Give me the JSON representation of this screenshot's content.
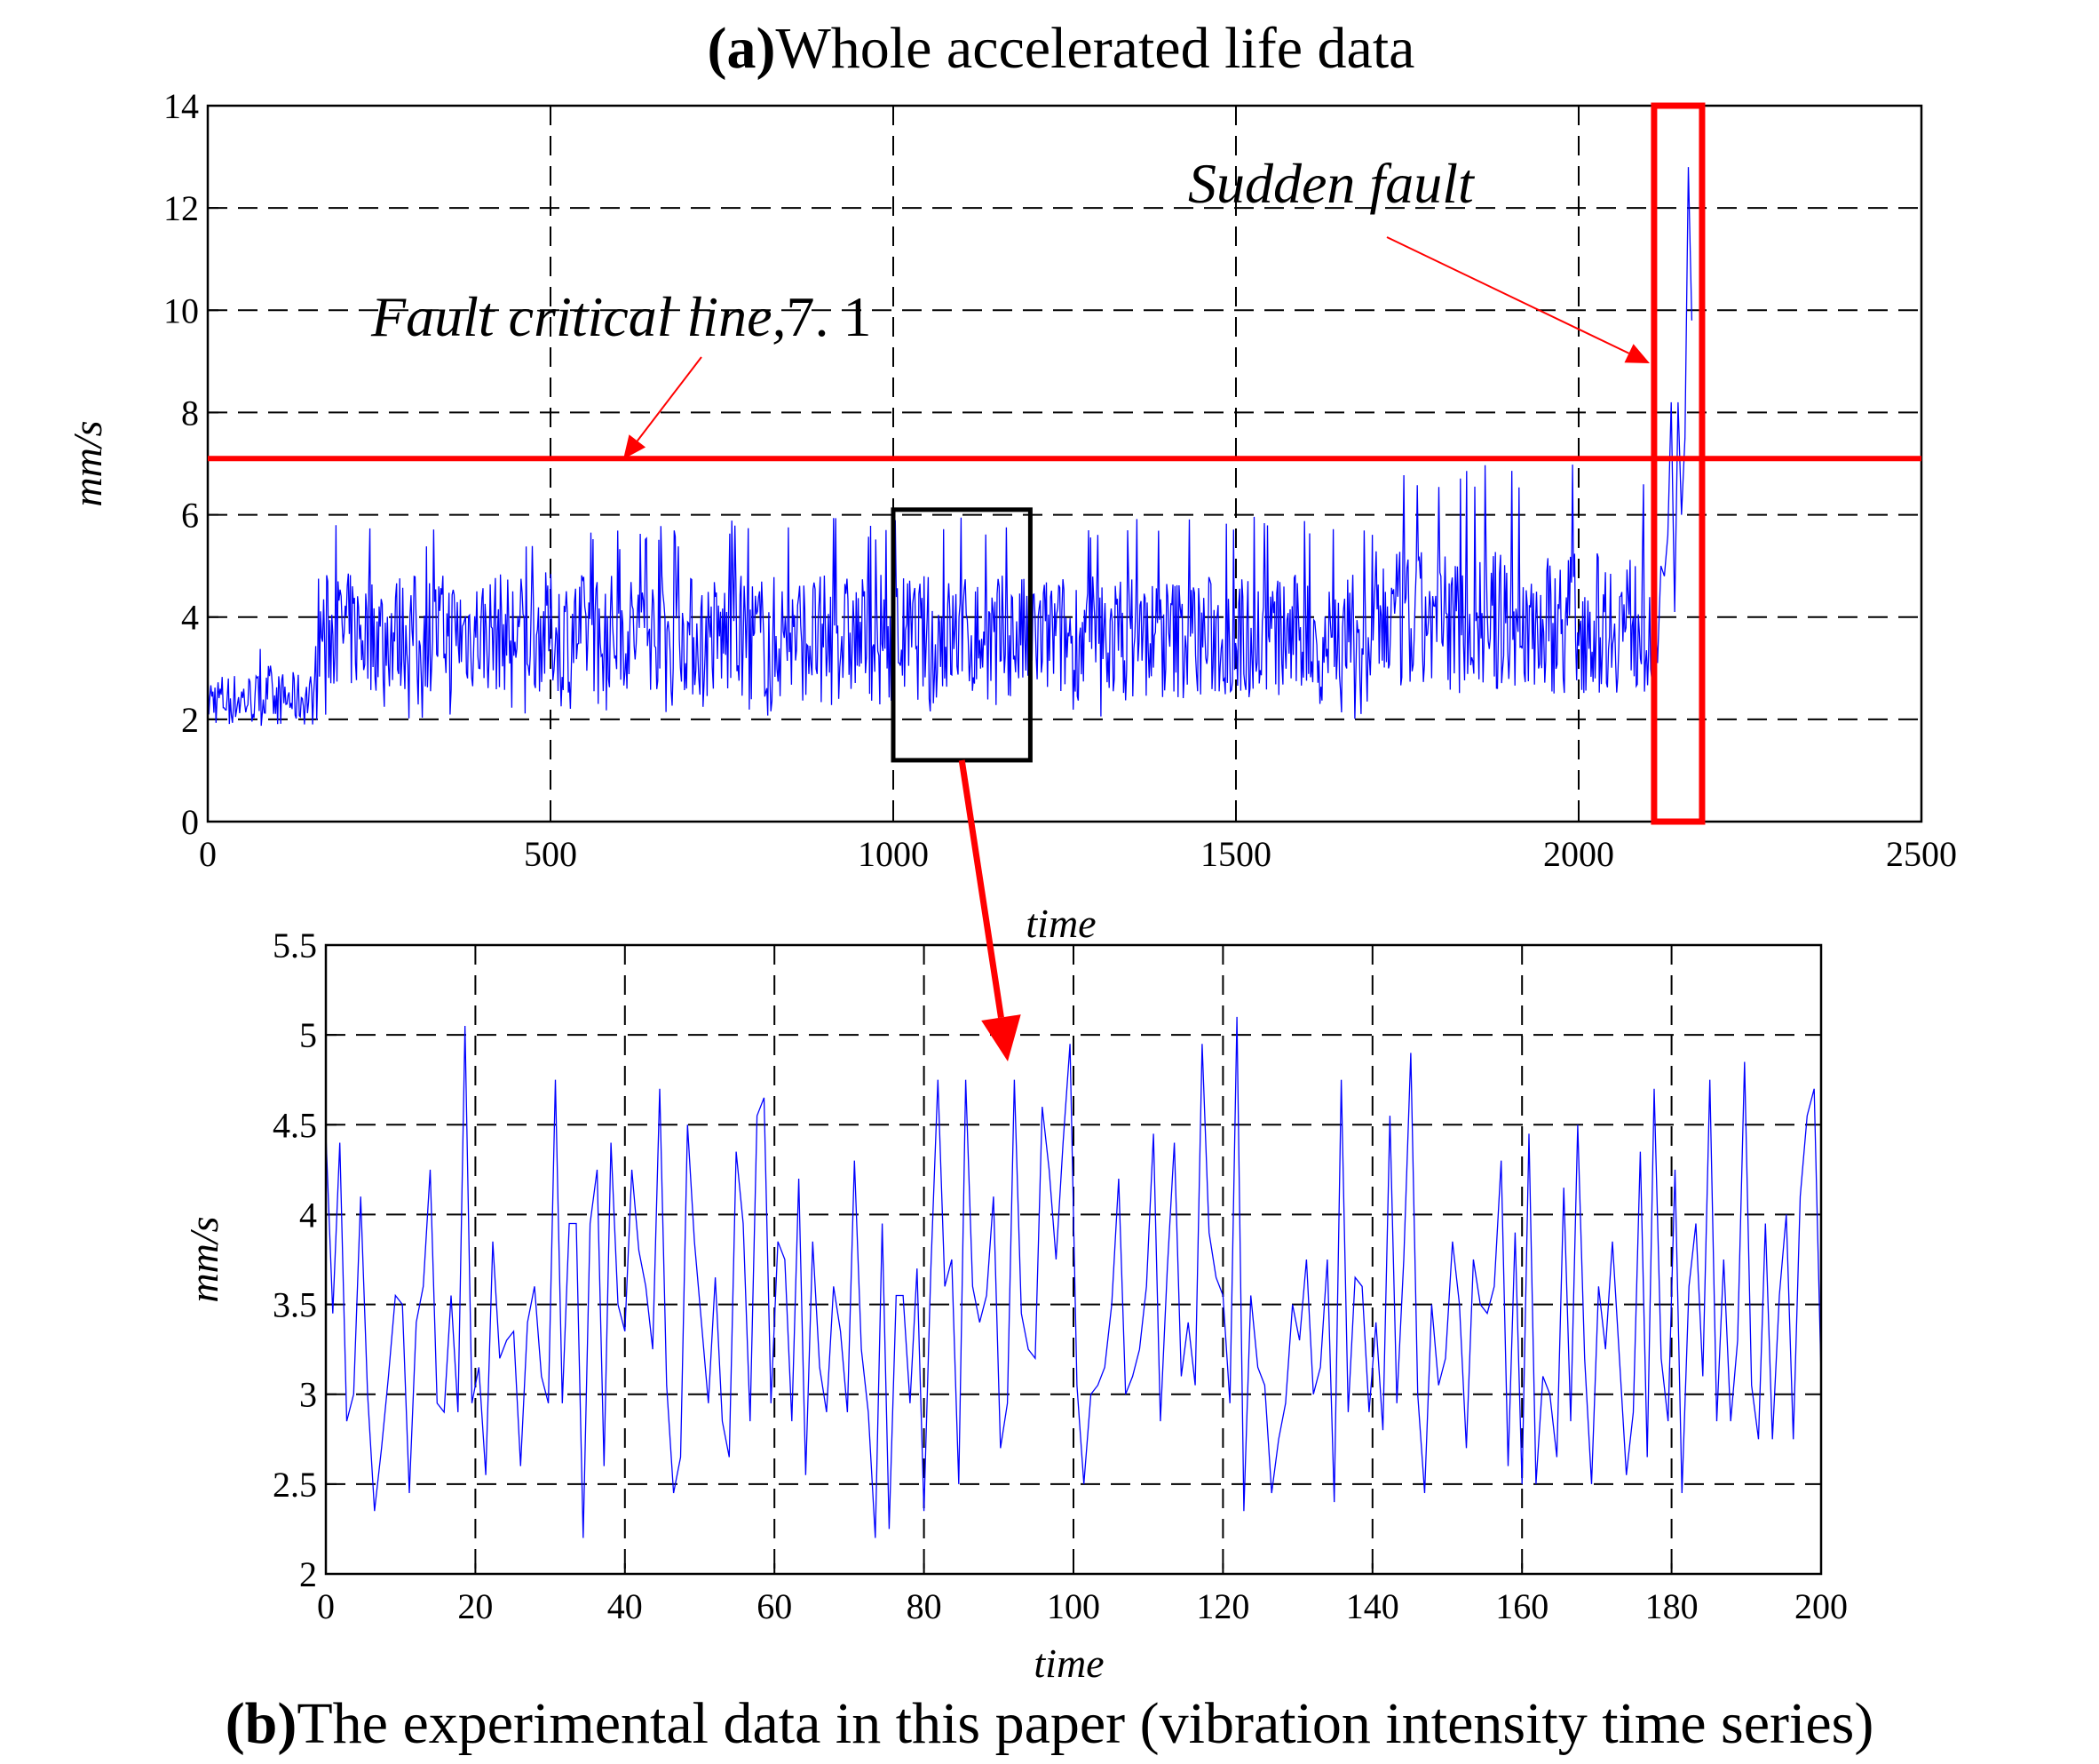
{
  "captions": {
    "a_tag": "(a)",
    "a_text": "Whole accelerated life data",
    "b_tag": "(b)",
    "b_text": "The experimental data in this paper (vibration intensity time series)"
  },
  "annotations": {
    "fault_line_label": "Fault critical line,",
    "fault_line_value": "7. 1",
    "sudden_fault_label": "Sudden fault"
  },
  "colors": {
    "series": "#0000ff",
    "highlight": "#ff0000",
    "zoom_box": "#000000"
  },
  "chart_data": [
    {
      "type": "line",
      "title": "Whole accelerated life data",
      "xlabel": "time",
      "ylabel": "mm/s",
      "xlim": [
        0,
        2500
      ],
      "ylim": [
        0,
        14
      ],
      "xticks": [
        0,
        500,
        1000,
        1500,
        2000,
        2500
      ],
      "yticks": [
        0,
        2,
        4,
        6,
        8,
        10,
        12,
        14
      ],
      "grid": true,
      "threshold": {
        "value": 7.1,
        "label": "Fault critical line,7. 1"
      },
      "highlight_region": {
        "x": [
          2110,
          2180
        ],
        "label": "Sudden fault"
      },
      "zoom_region": {
        "x": [
          1000,
          1200
        ],
        "y": [
          1.2,
          6.1
        ]
      },
      "segments": [
        {
          "x": [
            0,
            160
          ],
          "mean": 2.4,
          "min": 1.8,
          "max": 3.5
        },
        {
          "x": [
            160,
            700
          ],
          "mean": 3.7,
          "min": 2.0,
          "max": 5.8
        },
        {
          "x": [
            700,
            1700
          ],
          "mean": 3.6,
          "min": 2.0,
          "max": 6.0
        },
        {
          "x": [
            1700,
            2110
          ],
          "mean": 3.9,
          "min": 2.5,
          "max": 7.0
        }
      ],
      "fault_points": [
        {
          "x": 2110,
          "y": 4.6
        },
        {
          "x": 2115,
          "y": 3.1
        },
        {
          "x": 2120,
          "y": 5.0
        },
        {
          "x": 2125,
          "y": 4.8
        },
        {
          "x": 2130,
          "y": 5.6
        },
        {
          "x": 2135,
          "y": 8.2
        },
        {
          "x": 2140,
          "y": 4.1
        },
        {
          "x": 2145,
          "y": 8.2
        },
        {
          "x": 2150,
          "y": 6.0
        },
        {
          "x": 2155,
          "y": 7.5
        },
        {
          "x": 2160,
          "y": 12.8
        },
        {
          "x": 2165,
          "y": 9.8
        }
      ]
    },
    {
      "type": "line",
      "title": "The experimental data in this paper (vibration intensity time series)",
      "xlabel": "time",
      "ylabel": "mm/s",
      "xlim": [
        0,
        200
      ],
      "ylim": [
        2,
        5.5
      ],
      "xticks": [
        0,
        20,
        40,
        60,
        80,
        100,
        120,
        140,
        160,
        180,
        200
      ],
      "yticks": [
        2,
        2.5,
        3,
        3.5,
        4,
        4.5,
        5,
        5.5
      ],
      "grid": true,
      "y": [
        4.45,
        3.45,
        4.4,
        2.85,
        3.0,
        4.1,
        3.0,
        2.35,
        2.7,
        3.1,
        3.55,
        3.5,
        2.45,
        3.4,
        3.6,
        4.25,
        2.95,
        2.9,
        3.55,
        2.9,
        5.05,
        2.95,
        3.15,
        2.55,
        3.85,
        3.2,
        3.3,
        3.35,
        2.6,
        3.4,
        3.6,
        3.1,
        2.95,
        4.75,
        2.95,
        3.95,
        3.95,
        2.2,
        3.95,
        4.25,
        2.6,
        4.4,
        3.5,
        3.35,
        4.25,
        3.8,
        3.6,
        3.25,
        4.7,
        3.05,
        2.45,
        2.65,
        4.5,
        3.85,
        3.4,
        2.95,
        3.65,
        2.85,
        2.65,
        4.35,
        3.95,
        2.85,
        4.55,
        4.65,
        2.95,
        3.85,
        3.75,
        2.85,
        4.2,
        2.55,
        3.85,
        3.15,
        2.9,
        3.6,
        3.35,
        2.9,
        4.3,
        3.25,
        2.9,
        2.2,
        3.95,
        2.25,
        3.55,
        3.55,
        2.95,
        3.7,
        2.35,
        3.7,
        4.75,
        3.6,
        3.75,
        2.5,
        4.75,
        3.6,
        3.4,
        3.55,
        4.1,
        2.7,
        2.95,
        4.75,
        3.45,
        3.25,
        3.2,
        4.6,
        4.25,
        3.75,
        4.4,
        4.95,
        3.05,
        2.5,
        3.0,
        3.05,
        3.15,
        3.5,
        4.2,
        3.0,
        3.1,
        3.25,
        3.6,
        4.45,
        2.85,
        3.7,
        4.4,
        3.1,
        3.4,
        3.05,
        4.95,
        3.9,
        3.65,
        3.55,
        2.95,
        5.1,
        2.35,
        3.55,
        3.15,
        3.05,
        2.45,
        2.75,
        2.95,
        3.5,
        3.3,
        3.75,
        3.0,
        3.15,
        3.75,
        2.4,
        4.75,
        2.9,
        3.65,
        3.6,
        2.9,
        3.4,
        2.8,
        4.55,
        2.95,
        3.75,
        4.9,
        3.0,
        2.45,
        3.5,
        3.05,
        3.2,
        3.85,
        3.5,
        2.7,
        3.75,
        3.5,
        3.45,
        3.6,
        4.3,
        2.6,
        3.9,
        2.5,
        4.45,
        2.5,
        3.1,
        3.0,
        2.65,
        4.15,
        2.85,
        4.5,
        3.2,
        2.5,
        3.6,
        3.25,
        3.85,
        3.2,
        2.55,
        2.9,
        4.35,
        2.65,
        4.7,
        3.2,
        2.85,
        4.25,
        2.45,
        3.6,
        3.95,
        3.1,
        4.75,
        2.85,
        3.75,
        2.85,
        3.3,
        4.85,
        3.05,
        2.75,
        3.95,
        2.75,
        3.55,
        4.0,
        2.75,
        4.1,
        4.55,
        4.7,
        3.1
      ]
    }
  ]
}
